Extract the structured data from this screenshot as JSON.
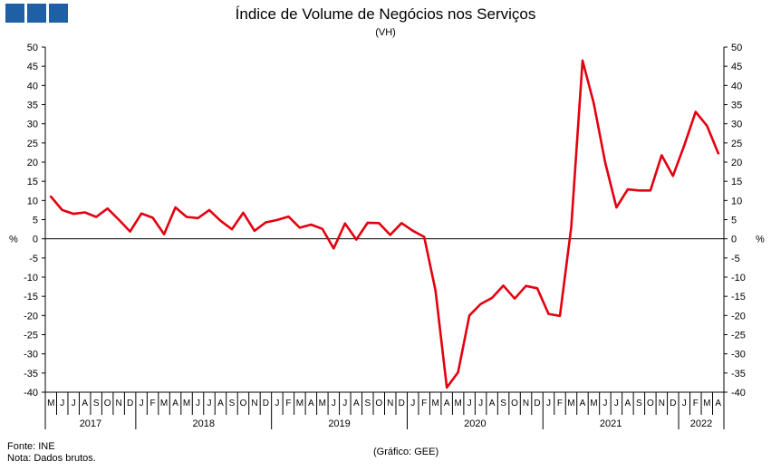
{
  "title": "Índice de Volume de Negócios nos Serviços",
  "subtitle": "(VH)",
  "footer": {
    "source": "Fonte: INE",
    "note": "Nota: Dados brutos.",
    "credit": "(Gráfico: GEE)"
  },
  "colors": {
    "series": "#e3000f",
    "logo": "#1f5fa6"
  },
  "chart_data": {
    "type": "line",
    "title": "Índice de Volume de Negócios nos Serviços",
    "subtitle": "(VH)",
    "ylabel_left": "%",
    "ylabel_right": "%",
    "ylim": [
      -40,
      50
    ],
    "ystep": 5,
    "yticks": [
      "-40",
      "-35",
      "-30",
      "-25",
      "-20",
      "-15",
      "-10",
      "-5",
      "0",
      "5",
      "10",
      "15",
      "20",
      "25",
      "30",
      "35",
      "40",
      "45",
      "50"
    ],
    "grid": false,
    "x": [
      "M",
      "J",
      "J",
      "A",
      "S",
      "O",
      "N",
      "D",
      "J",
      "F",
      "M",
      "A",
      "M",
      "J",
      "J",
      "A",
      "S",
      "O",
      "N",
      "D",
      "J",
      "F",
      "M",
      "A",
      "M",
      "J",
      "J",
      "A",
      "S",
      "O",
      "N",
      "D",
      "J",
      "F",
      "M",
      "A",
      "M",
      "J",
      "J",
      "A",
      "S",
      "O",
      "N",
      "D",
      "J",
      "F",
      "M",
      "A",
      "M",
      "J",
      "J",
      "A",
      "S",
      "O",
      "N",
      "D",
      "J",
      "F",
      "M",
      "A"
    ],
    "years": [
      {
        "label": "2017",
        "start": 0,
        "count": 8
      },
      {
        "label": "2018",
        "start": 8,
        "count": 12
      },
      {
        "label": "2019",
        "start": 20,
        "count": 12
      },
      {
        "label": "2020",
        "start": 32,
        "count": 12
      },
      {
        "label": "2021",
        "start": 44,
        "count": 12
      },
      {
        "label": "2022",
        "start": 56,
        "count": 4
      }
    ],
    "series": [
      {
        "values": [
          11.0,
          7.5,
          6.5,
          6.9,
          5.7,
          7.9,
          5.0,
          1.9,
          6.6,
          5.5,
          1.2,
          8.2,
          5.7,
          5.4,
          7.5,
          4.7,
          2.5,
          6.8,
          2.1,
          4.3,
          4.9,
          5.8,
          2.9,
          3.7,
          2.6,
          -2.5,
          4.0,
          -0.2,
          4.2,
          4.1,
          1.0,
          4.1,
          2.1,
          0.5,
          -13.5,
          -38.8,
          -34.8,
          -20.0,
          -17.0,
          -15.4,
          -12.2,
          -15.6,
          -12.3,
          -12.9,
          -19.6,
          -20.1,
          3.0,
          46.5,
          35.3,
          20.0,
          8.2,
          12.9,
          12.6,
          12.6,
          21.8,
          16.4,
          24.4,
          33.1,
          29.5,
          22.3
        ]
      }
    ]
  }
}
